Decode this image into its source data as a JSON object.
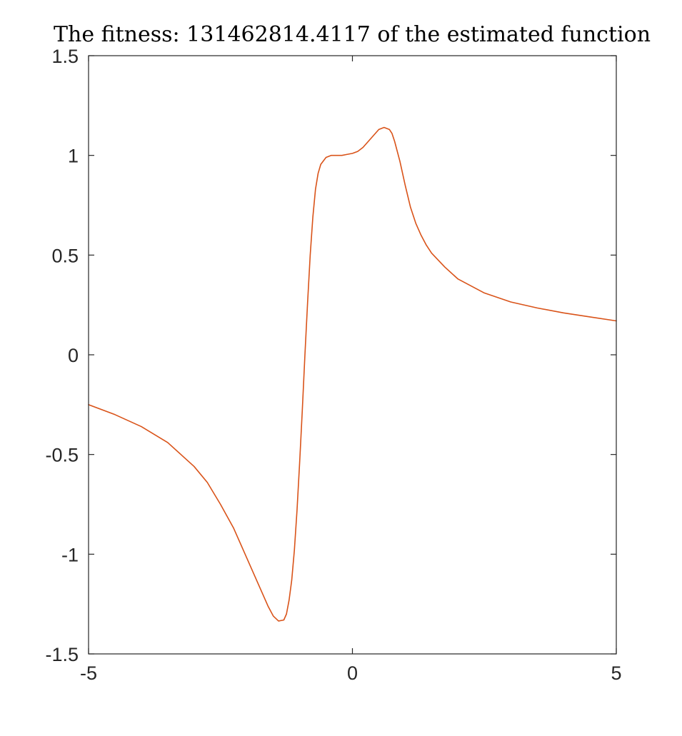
{
  "chart_data": {
    "type": "line",
    "title": "The fitness: 131462814.4117 of the estimated function",
    "xlabel": "",
    "ylabel": "",
    "xlim": [
      -5,
      5
    ],
    "ylim": [
      -1.5,
      1.5
    ],
    "xticks": [
      -5,
      0,
      5
    ],
    "xtick_labels": [
      "-5",
      "0",
      "5"
    ],
    "yticks": [
      -1.5,
      -1,
      -0.5,
      0,
      0.5,
      1,
      1.5
    ],
    "ytick_labels": [
      "-1.5",
      "-1",
      "-0.5",
      "0",
      "0.5",
      "1",
      "1.5"
    ],
    "grid": false,
    "legend": "none",
    "series": [
      {
        "color": "#D95319",
        "x": [
          -5,
          -4.5,
          -4,
          -3.5,
          -3,
          -2.75,
          -2.5,
          -2.25,
          -2,
          -1.75,
          -1.6,
          -1.5,
          -1.4,
          -1.3,
          -1.25,
          -1.2,
          -1.15,
          -1.1,
          -1.05,
          -1,
          -0.95,
          -0.9,
          -0.85,
          -0.8,
          -0.75,
          -0.7,
          -0.65,
          -0.6,
          -0.5,
          -0.4,
          -0.3,
          -0.2,
          -0.1,
          0,
          0.1,
          0.2,
          0.3,
          0.4,
          0.5,
          0.6,
          0.7,
          0.75,
          0.8,
          0.9,
          1,
          1.1,
          1.2,
          1.3,
          1.4,
          1.5,
          1.75,
          2,
          2.5,
          3,
          3.5,
          4,
          4.5,
          5
        ],
        "y": [
          -0.25,
          -0.3,
          -0.36,
          -0.44,
          -0.56,
          -0.64,
          -0.75,
          -0.87,
          -1.02,
          -1.17,
          -1.26,
          -1.31,
          -1.335,
          -1.33,
          -1.3,
          -1.23,
          -1.13,
          -0.98,
          -0.78,
          -0.54,
          -0.28,
          0.0,
          0.26,
          0.5,
          0.69,
          0.83,
          0.91,
          0.955,
          0.99,
          1.0,
          1.0,
          1.0,
          1.005,
          1.01,
          1.02,
          1.04,
          1.07,
          1.1,
          1.13,
          1.14,
          1.13,
          1.11,
          1.07,
          0.97,
          0.85,
          0.74,
          0.66,
          0.6,
          0.55,
          0.51,
          0.44,
          0.38,
          0.31,
          0.265,
          0.235,
          0.21,
          0.19,
          0.17
        ]
      }
    ]
  }
}
